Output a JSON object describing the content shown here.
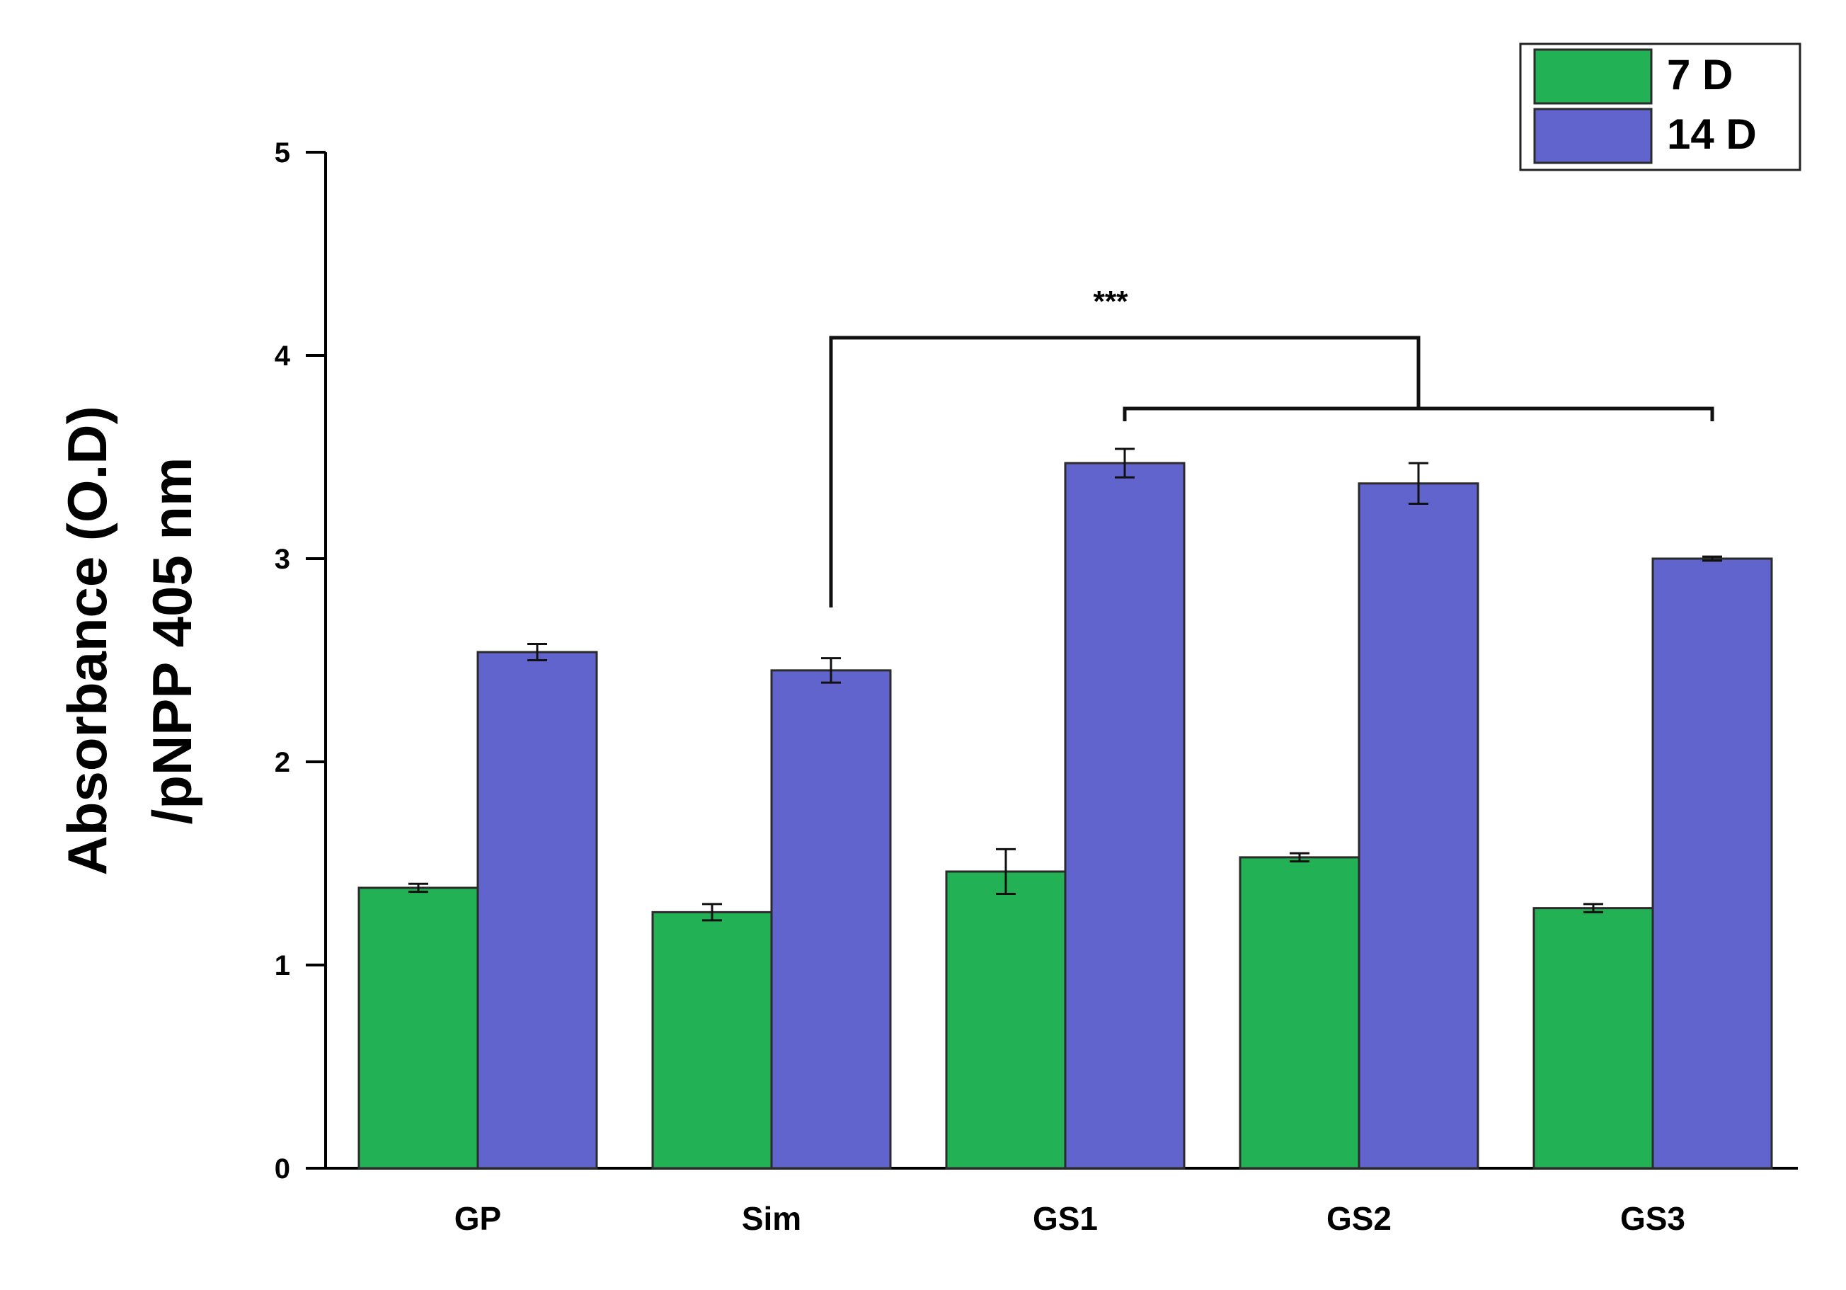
{
  "chart_data": {
    "type": "bar",
    "title": "",
    "xlabel": "",
    "ylabel_line1": "Absorbance (O.D)",
    "ylabel_line2": "/pNPP 405 nm",
    "categories": [
      "GP",
      "Sim",
      "GS1",
      "GS2",
      "GS3"
    ],
    "ylim": [
      0,
      5
    ],
    "yticks": [
      0,
      1,
      2,
      3,
      4,
      5
    ],
    "grid": false,
    "legend_position": "top-right",
    "series": [
      {
        "name": "7 D",
        "color": "#22b155",
        "values": [
          1.38,
          1.26,
          1.46,
          1.53,
          1.28
        ],
        "errors": [
          0.02,
          0.04,
          0.11,
          0.02,
          0.02
        ]
      },
      {
        "name": "14 D",
        "color": "#6064cc",
        "values": [
          2.54,
          2.45,
          3.47,
          3.37,
          3.0
        ],
        "errors": [
          0.04,
          0.06,
          0.07,
          0.1,
          0.01
        ]
      }
    ],
    "annotations": [
      {
        "text": "***",
        "type": "significance-bracket",
        "from_category": "Sim",
        "to_category": "GS2",
        "nested_from_category": "GS1",
        "nested_to_category": "GS3"
      }
    ]
  }
}
